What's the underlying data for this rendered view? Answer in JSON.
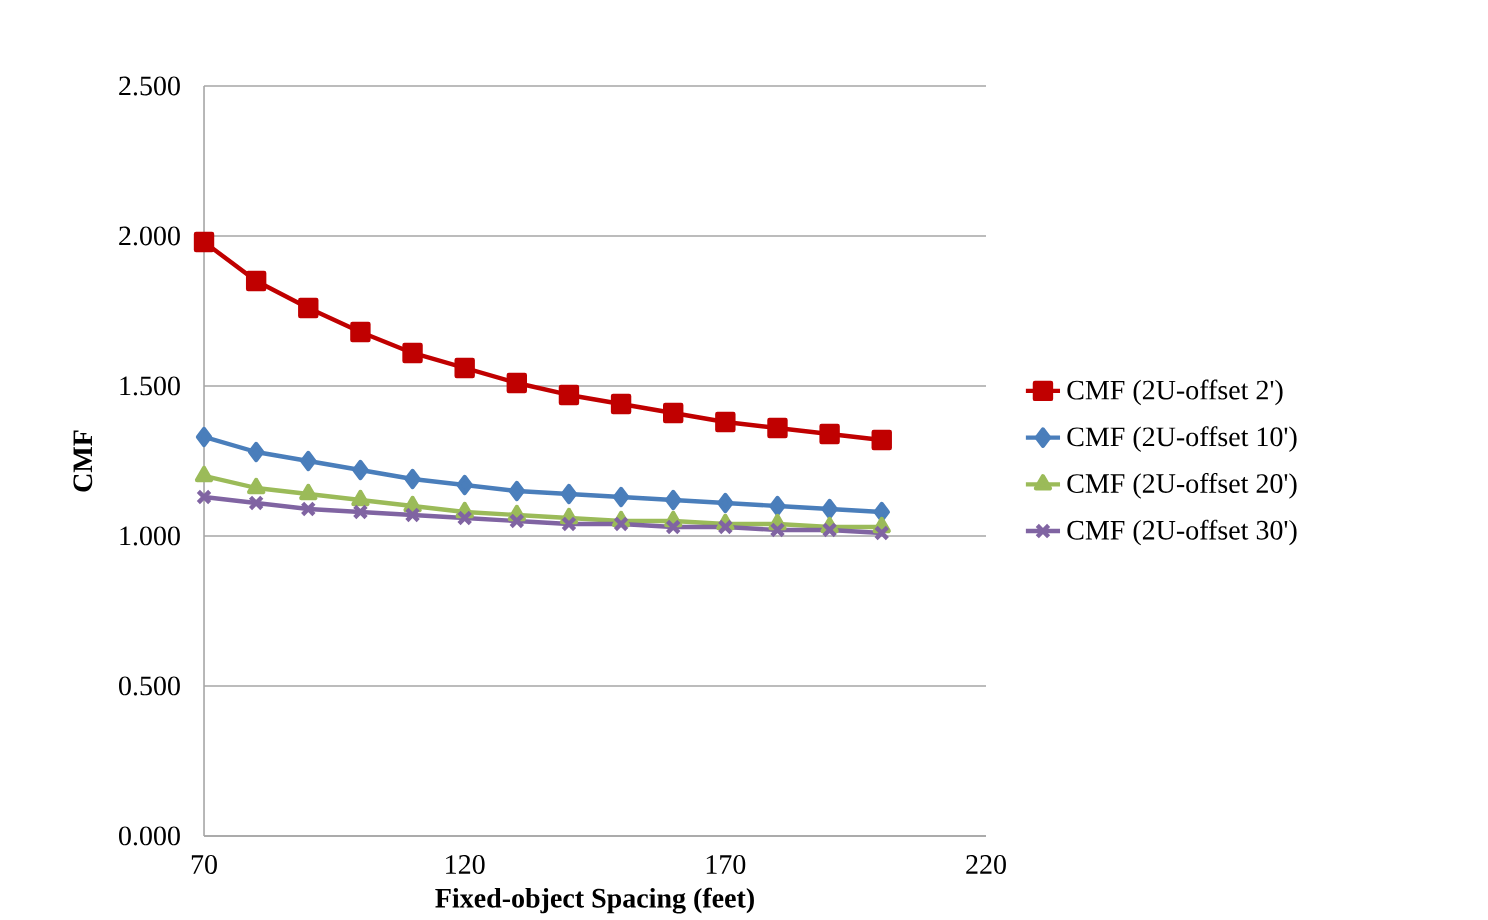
{
  "chart_data": {
    "type": "line",
    "xlabel": "Fixed-object Spacing (feet)",
    "ylabel": "CMF",
    "x": [
      70,
      80,
      90,
      100,
      110,
      120,
      130,
      140,
      150,
      160,
      170,
      180,
      190,
      200
    ],
    "series": [
      {
        "name": "CMF (2U-offset 2')",
        "color": "#c00000",
        "marker": "square",
        "values": [
          1.98,
          1.85,
          1.76,
          1.68,
          1.61,
          1.56,
          1.51,
          1.47,
          1.44,
          1.41,
          1.38,
          1.36,
          1.34,
          1.32
        ]
      },
      {
        "name": "CMF (2U-offset 10')",
        "color": "#4a7ebb",
        "marker": "diamond",
        "values": [
          1.33,
          1.28,
          1.25,
          1.22,
          1.19,
          1.17,
          1.15,
          1.14,
          1.13,
          1.12,
          1.11,
          1.1,
          1.09,
          1.08
        ]
      },
      {
        "name": "CMF (2U-offset 20')",
        "color": "#9bbb59",
        "marker": "triangle",
        "values": [
          1.2,
          1.16,
          1.14,
          1.12,
          1.1,
          1.08,
          1.07,
          1.06,
          1.05,
          1.05,
          1.04,
          1.04,
          1.03,
          1.03
        ]
      },
      {
        "name": "CMF (2U-offset 30')",
        "color": "#8064a2",
        "marker": "cross",
        "values": [
          1.13,
          1.11,
          1.09,
          1.08,
          1.07,
          1.06,
          1.05,
          1.04,
          1.04,
          1.03,
          1.03,
          1.02,
          1.02,
          1.01
        ]
      }
    ],
    "xlim": [
      70,
      220
    ],
    "xticks": [
      70,
      120,
      170,
      220
    ],
    "ylim": [
      0,
      2.5
    ],
    "yticks": [
      {
        "value": 0,
        "label": "0.000"
      },
      {
        "value": 0.5,
        "label": "0.500"
      },
      {
        "value": 1,
        "label": "1.000"
      },
      {
        "value": 1.5,
        "label": "1.500"
      },
      {
        "value": 2,
        "label": "2.000"
      },
      {
        "value": 2.5,
        "label": "2.500"
      }
    ],
    "grid": "y",
    "legend": "right",
    "line_style": "solid"
  }
}
